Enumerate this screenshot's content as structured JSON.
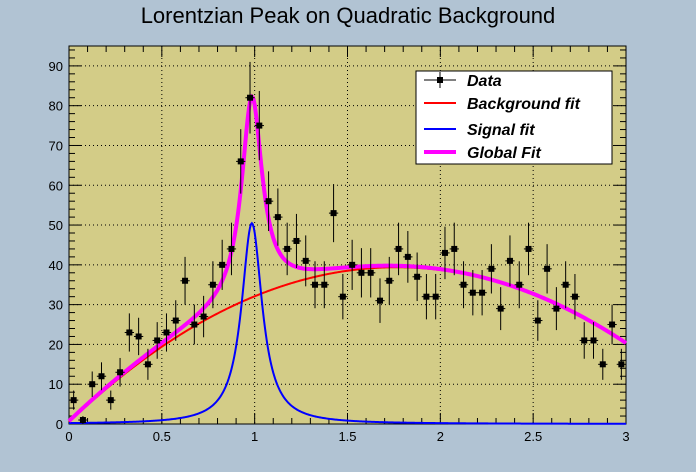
{
  "chart_data": {
    "type": "scatter",
    "title": "Lorentzian Peak on Quadratic Background",
    "xlabel": "",
    "ylabel": "",
    "xlim": [
      0,
      3
    ],
    "ylim": [
      0,
      95
    ],
    "xticks": [
      0,
      0.5,
      1,
      1.5,
      2,
      2.5,
      3
    ],
    "xtick_labels": [
      "0",
      "0.5",
      "1",
      "1.5",
      "2",
      "2.5",
      "3"
    ],
    "yticks": [
      0,
      10,
      20,
      30,
      40,
      50,
      60,
      70,
      80,
      90
    ],
    "ytick_labels": [
      "0",
      "10",
      "20",
      "30",
      "40",
      "50",
      "60",
      "70",
      "80",
      "90"
    ],
    "grid": true,
    "legend_position": "top-right",
    "colors": {
      "plot_background": "#d3cc87",
      "frame_background": "#b1c3d3",
      "data": "#000000",
      "background_fit": "#ff0000",
      "signal_fit": "#0000ff",
      "global_fit": "#ff00ff",
      "grid": "#000000"
    },
    "series": [
      {
        "name": "Data",
        "kind": "points_with_errors",
        "bin_width": 0.05,
        "x": [
          0.025,
          0.075,
          0.125,
          0.175,
          0.225,
          0.275,
          0.325,
          0.375,
          0.425,
          0.475,
          0.525,
          0.575,
          0.625,
          0.675,
          0.725,
          0.775,
          0.825,
          0.875,
          0.925,
          0.975,
          1.025,
          1.075,
          1.125,
          1.175,
          1.225,
          1.275,
          1.325,
          1.375,
          1.425,
          1.475,
          1.525,
          1.575,
          1.625,
          1.675,
          1.725,
          1.775,
          1.825,
          1.875,
          1.925,
          1.975,
          2.025,
          2.075,
          2.125,
          2.175,
          2.225,
          2.275,
          2.325,
          2.375,
          2.425,
          2.475,
          2.525,
          2.575,
          2.625,
          2.675,
          2.725,
          2.775,
          2.825,
          2.875,
          2.925,
          2.975
        ],
        "y": [
          6,
          1,
          10,
          12,
          6,
          13,
          23,
          22,
          15,
          21,
          23,
          26,
          36,
          25,
          27,
          35,
          40,
          44,
          66,
          82,
          75,
          56,
          52,
          44,
          46,
          41,
          35,
          35,
          53,
          32,
          40,
          38,
          38,
          31,
          36,
          44,
          42,
          37,
          32,
          32,
          43,
          44,
          35,
          33,
          33,
          39,
          29,
          41,
          35,
          44,
          26,
          39,
          29,
          35,
          32,
          21,
          21,
          15,
          25,
          15
        ],
        "y_err": [
          2.4,
          1,
          3.2,
          3.5,
          2.4,
          3.6,
          4.8,
          4.7,
          3.9,
          4.6,
          4.8,
          5.1,
          6,
          5,
          5.2,
          5.9,
          6.3,
          6.6,
          8.1,
          9,
          8.7,
          7.5,
          7.2,
          6.6,
          6.8,
          6.4,
          5.9,
          5.9,
          7.3,
          5.7,
          6.3,
          6.2,
          6.2,
          5.6,
          6,
          6.6,
          6.5,
          6.1,
          5.7,
          5.7,
          6.6,
          6.6,
          5.9,
          5.7,
          5.7,
          6.2,
          5.4,
          6.4,
          5.9,
          6.6,
          5.1,
          6.2,
          5.4,
          5.9,
          5.7,
          4.6,
          4.6,
          3.9,
          5,
          3.9
        ]
      },
      {
        "name": "Background fit",
        "kind": "curve",
        "model": "quadratic",
        "params": {
          "p0": 0.5,
          "p1": 44.1,
          "p2": -12.5
        }
      },
      {
        "name": "Signal fit",
        "kind": "curve",
        "model": "lorentzian",
        "params": {
          "area": 10.7,
          "gamma": 0.135,
          "mean": 0.985
        }
      },
      {
        "name": "Global Fit",
        "kind": "curve",
        "model": "background_plus_signal"
      }
    ]
  }
}
